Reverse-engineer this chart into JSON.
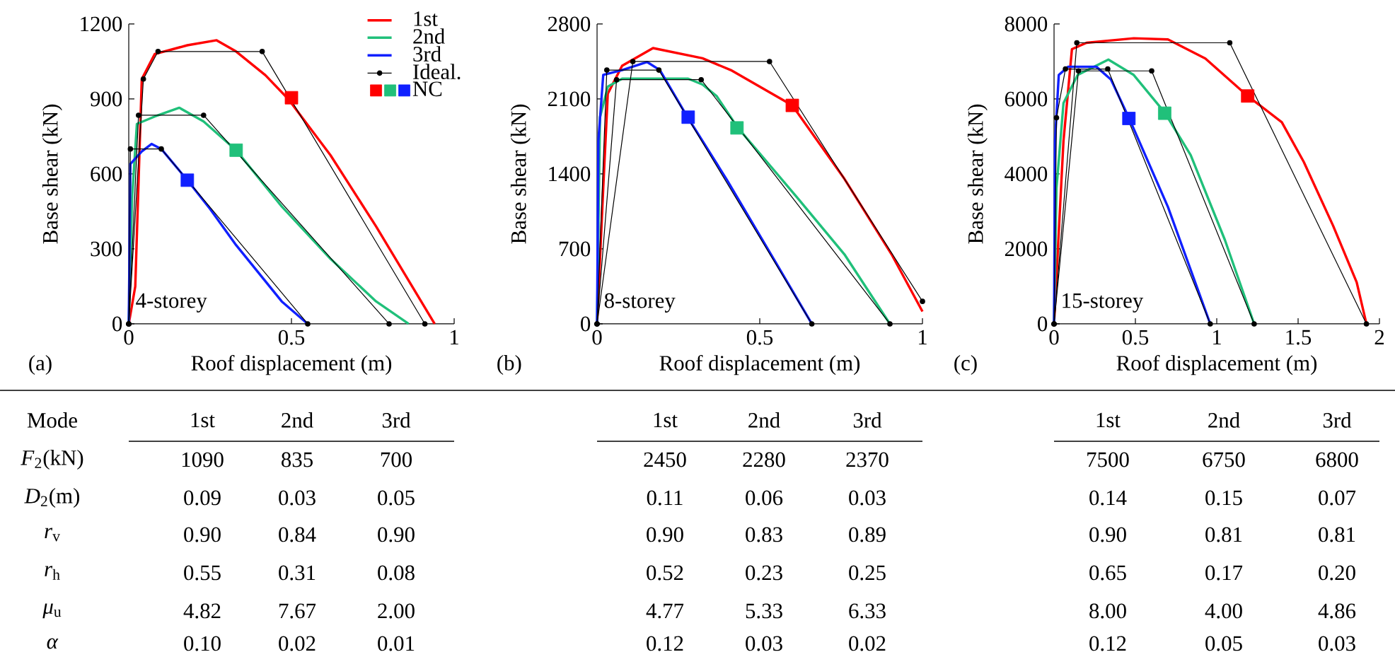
{
  "chart_data": [
    {
      "type": "line",
      "title": "4-storey",
      "xlabel": "Roof displacement (m)",
      "ylabel": "Base shear (kN)",
      "annotations": [
        "(a)"
      ],
      "xlim": [
        0,
        1
      ],
      "ylim": [
        0,
        1200
      ],
      "xticks": [
        0,
        0.5,
        1
      ],
      "yticks": [
        0,
        300,
        600,
        900,
        1200
      ],
      "legend": "top right",
      "series": [
        {
          "name": "1st",
          "type": "line",
          "color": "#ff0000",
          "x": [
            0,
            0.02,
            0.04,
            0.08,
            0.18,
            0.27,
            0.33,
            0.42,
            0.49,
            0.62,
            0.76,
            0.94
          ],
          "values": [
            0,
            150,
            980,
            1080,
            1115,
            1135,
            1090,
            995,
            900,
            675,
            390,
            0
          ]
        },
        {
          "name": "2nd",
          "type": "line",
          "color": "#20c07a",
          "x": [
            0,
            0.01,
            0.025,
            0.08,
            0.155,
            0.23,
            0.33,
            0.47,
            0.62,
            0.76,
            0.86
          ],
          "values": [
            0,
            500,
            800,
            830,
            865,
            810,
            695,
            470,
            260,
            90,
            0
          ]
        },
        {
          "name": "3rd",
          "type": "line",
          "color": "#1020ff",
          "x": [
            0,
            0.005,
            0.04,
            0.07,
            0.1,
            0.18,
            0.25,
            0.33,
            0.47,
            0.55
          ],
          "values": [
            0,
            640,
            690,
            720,
            700,
            575,
            460,
            315,
            90,
            0
          ]
        },
        {
          "name": "Ideal.",
          "type": "line",
          "color": "#000000",
          "marker": "circle",
          "x": [
            0,
            0.045,
            0.09,
            0.41,
            0.91
          ],
          "values": [
            0,
            980,
            1090,
            1090,
            0
          ]
        },
        {
          "type": "line",
          "color": "#000000",
          "marker": "circle",
          "x": [
            0,
            0.03,
            0.23,
            0.8
          ],
          "values": [
            0,
            835,
            835,
            0
          ]
        },
        {
          "type": "line",
          "color": "#000000",
          "marker": "circle",
          "x": [
            0,
            0.005,
            0.1,
            0.55
          ],
          "values": [
            0,
            700,
            700,
            0
          ]
        },
        {
          "name": "NC",
          "type": "scatter",
          "marker": "square",
          "colors": [
            "#ff0000",
            "#20c07a",
            "#1020ff"
          ],
          "x": [
            0.5,
            0.33,
            0.18
          ],
          "values": [
            905,
            695,
            575
          ]
        }
      ]
    },
    {
      "type": "line",
      "title": "8-storey",
      "xlabel": "Roof displacement (m)",
      "ylabel": "Base shear (kN)",
      "annotations": [
        "(b)"
      ],
      "xlim": [
        0,
        1
      ],
      "ylim": [
        0,
        2800
      ],
      "xticks": [
        0,
        0.5,
        1
      ],
      "yticks": [
        0,
        700,
        1400,
        2100,
        2800
      ],
      "series": [
        {
          "type": "line",
          "color": "#ff0000",
          "x": [
            0,
            0.019,
            0.033,
            0.077,
            0.172,
            0.324,
            0.411,
            0.6,
            0.76,
            0.905,
            1.0
          ],
          "values": [
            0,
            1270,
            2150,
            2410,
            2575,
            2480,
            2370,
            2040,
            1355,
            650,
            115
          ]
        },
        {
          "type": "line",
          "color": "#20c07a",
          "x": [
            0,
            0.009,
            0.033,
            0.077,
            0.28,
            0.324,
            0.368,
            0.433,
            0.615,
            0.76,
            0.9
          ],
          "values": [
            0,
            1930,
            2215,
            2290,
            2290,
            2235,
            2125,
            1830,
            1180,
            650,
            0
          ]
        },
        {
          "type": "line",
          "color": "#1020ff",
          "x": [
            0,
            0.004,
            0.019,
            0.077,
            0.154,
            0.193,
            0.278,
            0.397,
            0.542,
            0.66
          ],
          "values": [
            0,
            1710,
            2325,
            2370,
            2445,
            2370,
            1930,
            1355,
            610,
            0
          ]
        },
        {
          "type": "line",
          "color": "#000000",
          "marker": "circle",
          "x": [
            0,
            0.11,
            0.53,
            1.0
          ],
          "values": [
            0,
            2450,
            2450,
            210
          ]
        },
        {
          "type": "line",
          "color": "#000000",
          "marker": "circle",
          "x": [
            0,
            0.06,
            0.32,
            0.9
          ],
          "values": [
            0,
            2280,
            2280,
            0
          ]
        },
        {
          "type": "line",
          "color": "#000000",
          "marker": "circle",
          "x": [
            0,
            0.03,
            0.19,
            0.66
          ],
          "values": [
            0,
            2370,
            2370,
            0
          ]
        },
        {
          "type": "scatter",
          "marker": "square",
          "colors": [
            "#ff0000",
            "#20c07a",
            "#1020ff"
          ],
          "x": [
            0.6,
            0.43,
            0.28
          ],
          "values": [
            2040,
            1830,
            1930
          ]
        }
      ]
    },
    {
      "type": "line",
      "title": "15-storey",
      "xlabel": "Roof displacement (m)",
      "ylabel": "Base shear (kN)",
      "annotations": [
        "(c)"
      ],
      "xlim": [
        0,
        2
      ],
      "ylim": [
        0,
        8000
      ],
      "xticks": [
        0,
        0.5,
        1,
        1.5,
        2
      ],
      "yticks": [
        0,
        2000,
        4000,
        6000,
        8000
      ],
      "series": [
        {
          "type": "line",
          "color": "#ff0000",
          "x": [
            0,
            0.058,
            0.11,
            0.2,
            0.49,
            0.7,
            0.93,
            1.19,
            1.4,
            1.535,
            1.715,
            1.86,
            1.92
          ],
          "values": [
            0,
            4880,
            7330,
            7500,
            7620,
            7590,
            7080,
            6080,
            5380,
            4320,
            2620,
            1110,
            0
          ]
        },
        {
          "type": "line",
          "color": "#20c07a",
          "x": [
            0,
            0.015,
            0.058,
            0.145,
            0.334,
            0.49,
            0.68,
            0.84,
            1.05,
            1.23
          ],
          "values": [
            0,
            3620,
            5890,
            6640,
            7050,
            6640,
            5640,
            4500,
            2240,
            0
          ]
        },
        {
          "type": "line",
          "color": "#1020ff",
          "x": [
            0,
            0.006,
            0.029,
            0.087,
            0.26,
            0.35,
            0.465,
            0.7,
            0.96
          ],
          "values": [
            0,
            4880,
            6640,
            6860,
            6860,
            6520,
            5450,
            3120,
            0
          ]
        },
        {
          "type": "line",
          "color": "#000000",
          "marker": "circle",
          "x": [
            0,
            0.14,
            1.08,
            1.92
          ],
          "values": [
            0,
            7500,
            7500,
            0
          ]
        },
        {
          "type": "line",
          "color": "#000000",
          "marker": "circle",
          "x": [
            0,
            0.15,
            0.6,
            1.23
          ],
          "values": [
            0,
            6750,
            6750,
            0
          ]
        },
        {
          "type": "line",
          "color": "#000000",
          "marker": "circle",
          "x": [
            0,
            0.015,
            0.07,
            0.33,
            0.96
          ],
          "values": [
            0,
            5500,
            6800,
            6800,
            0
          ]
        },
        {
          "type": "scatter",
          "marker": "square",
          "colors": [
            "#ff0000",
            "#20c07a",
            "#1020ff"
          ],
          "x": [
            1.19,
            0.68,
            0.46
          ],
          "values": [
            6080,
            5620,
            5480
          ]
        }
      ]
    },
    {
      "type": "other",
      "annotations": [
        "Mode",
        "1st",
        "2nd",
        "3rd",
        "1st",
        "2nd",
        "3rd",
        "1st",
        "2nd",
        "3rd",
        "*F*$_{2}$(kN)",
        "1090",
        "835",
        "700",
        "2450",
        "2280",
        "2370",
        "7500",
        "6750",
        "6800",
        "*D*$_{2}$(m)",
        "0.09",
        "0.03",
        "0.05",
        "0.11",
        "0.06",
        "0.03",
        "0.14",
        "0.15",
        "0.07",
        "*r*$_{v}$",
        "0.90",
        "0.84",
        "0.90",
        "0.90",
        "0.83",
        "0.89",
        "0.90",
        "0.81",
        "0.81",
        "*r*$_{h}$",
        "0.55",
        "0.31",
        "0.08",
        "0.52",
        "0.23",
        "0.25",
        "0.65",
        "0.17",
        "0.20",
        "*μ*$_{u}$",
        "4.82",
        "7.67",
        "2.00",
        "4.77",
        "5.33",
        "6.33",
        "8.00",
        "4.00",
        "4.86",
        "*α*",
        "0.10",
        "0.02",
        "0.01",
        "0.12",
        "0.03",
        "0.02",
        "0.12",
        "0.05",
        "0.03"
      ]
    }
  ]
}
